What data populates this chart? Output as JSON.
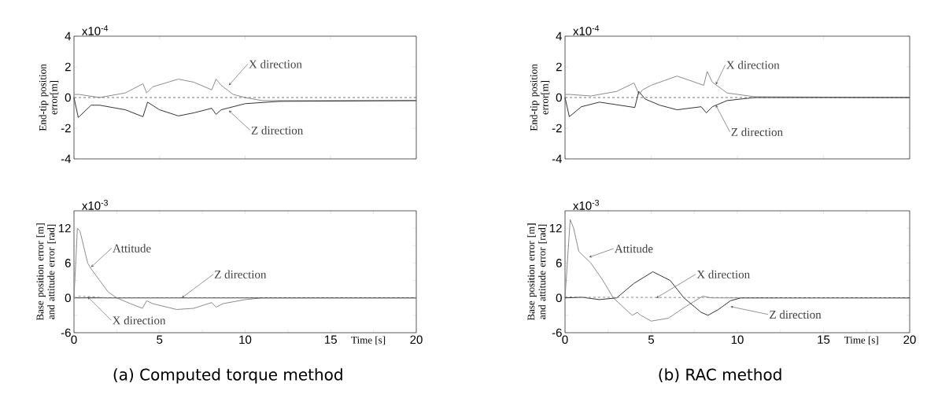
{
  "chart_data": [
    {
      "type": "line",
      "ylabel": "End-tip position error[m]",
      "xlim": [
        0,
        20
      ],
      "ylim": [
        -4,
        4
      ],
      "xticks": [
        0,
        5,
        10,
        15,
        20
      ],
      "yticks": [
        -4,
        -2,
        0,
        2,
        4
      ],
      "tick_labels": "y",
      "series": [
        {
          "color": "#8c8c8c",
          "x": [
            0,
            0.3,
            1.5,
            3,
            4.03,
            4.25,
            4.6,
            6.1,
            7,
            8.05,
            8.3,
            8.6,
            9.3,
            10,
            11,
            20
          ],
          "values": [
            0.2,
            0.2,
            0,
            0.3,
            0.9,
            0.3,
            0.7,
            1.2,
            1.0,
            0.5,
            1.2,
            0.8,
            0.2,
            0,
            -0.2,
            -0.2
          ]
        },
        {
          "color": "#333333",
          "x": [
            0,
            0.25,
            1,
            1.5,
            3,
            4.03,
            4.3,
            5,
            6.1,
            7,
            8.05,
            8.3,
            8.6,
            10,
            12,
            20
          ],
          "values": [
            0,
            -1.3,
            -0.5,
            -0.5,
            -0.8,
            -1.25,
            -0.3,
            -0.8,
            -1.2,
            -1.0,
            -0.7,
            -1.1,
            -0.8,
            -0.4,
            -0.25,
            -0.2
          ]
        }
      ],
      "ref_lines": [
        {
          "axis": "y",
          "value": 0,
          "color": "#555555",
          "line_style": "dashed"
        }
      ],
      "annotations": [
        "x10$^{-4}$",
        {
          "text": "X direction",
          "x": 9.05,
          "y": 0.8
        },
        {
          "text": "Z direction",
          "x": 9.05,
          "y": -0.85
        }
      ]
    },
    {
      "type": "line",
      "ylabel": "End-tip position error[m]",
      "xlim": [
        0,
        20
      ],
      "ylim": [
        -4,
        4
      ],
      "xticks": [
        0,
        5,
        10,
        15,
        20
      ],
      "yticks": [
        -4,
        -2,
        0,
        2,
        4
      ],
      "tick_labels": "y",
      "series": [
        {
          "color": "#8c8c8c",
          "x": [
            0,
            0.3,
            1.5,
            3,
            4.0,
            4.3,
            4.5,
            5,
            6.5,
            8.05,
            8.25,
            8.55,
            9.4,
            11,
            20
          ],
          "values": [
            0.2,
            0.2,
            0.1,
            0.4,
            0.95,
            0.2,
            0.5,
            0.8,
            1.4,
            0.8,
            1.7,
            1.0,
            0.3,
            0.05,
            0
          ]
        },
        {
          "color": "#333333",
          "x": [
            0,
            0.25,
            0.95,
            2,
            4.05,
            4.28,
            4.65,
            5.5,
            6.5,
            7.9,
            8.2,
            8.55,
            9.4,
            11,
            20
          ],
          "values": [
            0,
            -1.25,
            -0.6,
            -0.3,
            -0.65,
            0.4,
            -0.1,
            -0.5,
            -0.8,
            -0.6,
            -1.0,
            -0.6,
            -0.2,
            0,
            0
          ]
        }
      ],
      "ref_lines": [
        {
          "axis": "y",
          "value": 0,
          "color": "#555555",
          "line_style": "dashed"
        }
      ],
      "annotations": [
        "x10$^{-4}$",
        {
          "text": "X direction",
          "x": 8.75,
          "y": 0.85
        },
        {
          "text": "Z direction",
          "x": 8.75,
          "y": -0.5
        }
      ]
    },
    {
      "type": "line",
      "ylabel": "Base position error [m] and attitude error [rad]",
      "xlabel": "Time [s]",
      "xlim": [
        0,
        20
      ],
      "ylim": [
        -6,
        15
      ],
      "xticks": [
        0,
        {
          "value": 2.5,
          "label": null
        },
        5,
        {
          "value": 7.5,
          "label": null
        },
        10,
        {
          "value": 12.5,
          "label": null
        },
        15,
        {
          "value": 17.5,
          "label": null
        },
        20
      ],
      "yticks": [
        -6,
        {
          "value": -3,
          "label": null
        },
        0,
        {
          "value": 3,
          "label": null
        },
        6,
        {
          "value": 9,
          "label": null
        },
        12
      ],
      "series": [
        {
          "color": "#8c8c8c",
          "x": [
            0,
            0.2,
            0.35,
            0.8,
            1,
            1.5,
            2,
            2.5,
            3.3,
            4.0,
            4.25,
            4.6,
            6,
            7,
            8.05,
            8.3,
            8.7,
            10,
            11,
            20
          ],
          "values": [
            0,
            12,
            11.5,
            6,
            5,
            3,
            1,
            0,
            -1,
            -1.8,
            -0.5,
            -1,
            -2,
            -1.8,
            -0.8,
            -1.6,
            -1,
            -0.3,
            0,
            0
          ]
        },
        {
          "color": "#333333",
          "x": [
            0,
            20
          ],
          "values": [
            0,
            0
          ]
        },
        {
          "color": "#8c8c8c",
          "line_style": "dashed",
          "x": [
            0,
            0.3,
            1,
            2,
            20
          ],
          "values": [
            0,
            0.3,
            0.2,
            0,
            0
          ]
        }
      ],
      "annotations": [
        "x10$^{-3}$",
        "(a) Computed torque method",
        {
          "text": "Attitude",
          "x": 1,
          "y": 5.3
        },
        {
          "text": "Z direction",
          "x": 6.3,
          "y": 0
        },
        {
          "text": "X direction",
          "x": 0.8,
          "y": 0.2
        }
      ]
    },
    {
      "type": "line",
      "ylabel": "Base position error [m] and attitude error [rad]",
      "xlabel": "Time [s]",
      "xlim": [
        0,
        20
      ],
      "ylim": [
        -6,
        15
      ],
      "xticks": [
        0,
        {
          "value": 2.5,
          "label": null
        },
        5,
        {
          "value": 7.5,
          "label": null
        },
        10,
        {
          "value": 12.5,
          "label": null
        },
        15,
        {
          "value": 17.5,
          "label": null
        },
        20
      ],
      "yticks": [
        -6,
        {
          "value": -3,
          "label": null
        },
        0,
        {
          "value": 3,
          "label": null
        },
        6,
        {
          "value": 9,
          "label": null
        },
        12
      ],
      "series": [
        {
          "color": "#8c8c8c",
          "x": [
            0,
            0.3,
            0.5,
            0.8,
            1.5,
            2.2,
            2.8,
            3.9,
            4.2,
            4.4,
            5,
            6,
            7,
            8.0,
            8.5,
            20
          ],
          "values": [
            0,
            13.5,
            12,
            8,
            6,
            3,
            0,
            -3,
            -2.5,
            -3,
            -4,
            -3.5,
            -1.5,
            0.3,
            0,
            0
          ]
        },
        {
          "color": "#333333",
          "x": [
            0,
            1,
            2,
            3,
            4,
            5.1,
            6.1,
            6.9,
            7.9,
            8.3,
            8.9,
            9.6,
            10.2,
            20
          ],
          "values": [
            0,
            0.1,
            -0.3,
            0,
            2.5,
            4.5,
            3,
            0,
            -2.5,
            -3,
            -2,
            -0.5,
            0,
            0
          ]
        },
        {
          "color": "#8c8c8c",
          "line_style": "dashed",
          "x": [
            0,
            1,
            20
          ],
          "values": [
            0.2,
            0.1,
            0
          ]
        }
      ],
      "annotations": [
        "x10$^{-3}$",
        "(b) RAC method",
        {
          "text": "Attitude",
          "x": 1.4,
          "y": 7
        },
        {
          "text": "X direction",
          "x": 5.3,
          "y": 0
        },
        {
          "text": "Z direction",
          "x": 9.6,
          "y": -1.5
        }
      ]
    }
  ]
}
